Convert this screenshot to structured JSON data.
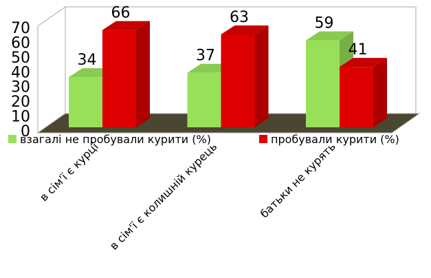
{
  "chart_data": {
    "type": "bar3d",
    "categories": [
      "в сім'ї є курці",
      "в сім'ї є колишній курець",
      "батьки не курять"
    ],
    "series": [
      {
        "name": "взагалі не пробували курити (%)",
        "color": "#99e05a",
        "values": [
          34,
          37,
          59
        ]
      },
      {
        "name": "пробували курити (%)",
        "color": "#dd0000",
        "values": [
          66,
          63,
          41
        ]
      }
    ],
    "ylim": [
      0,
      70
    ],
    "yticks": [
      0,
      10,
      20,
      30,
      40,
      50,
      60,
      70
    ],
    "legend": "bottom",
    "floor_color": "#4a4632"
  }
}
